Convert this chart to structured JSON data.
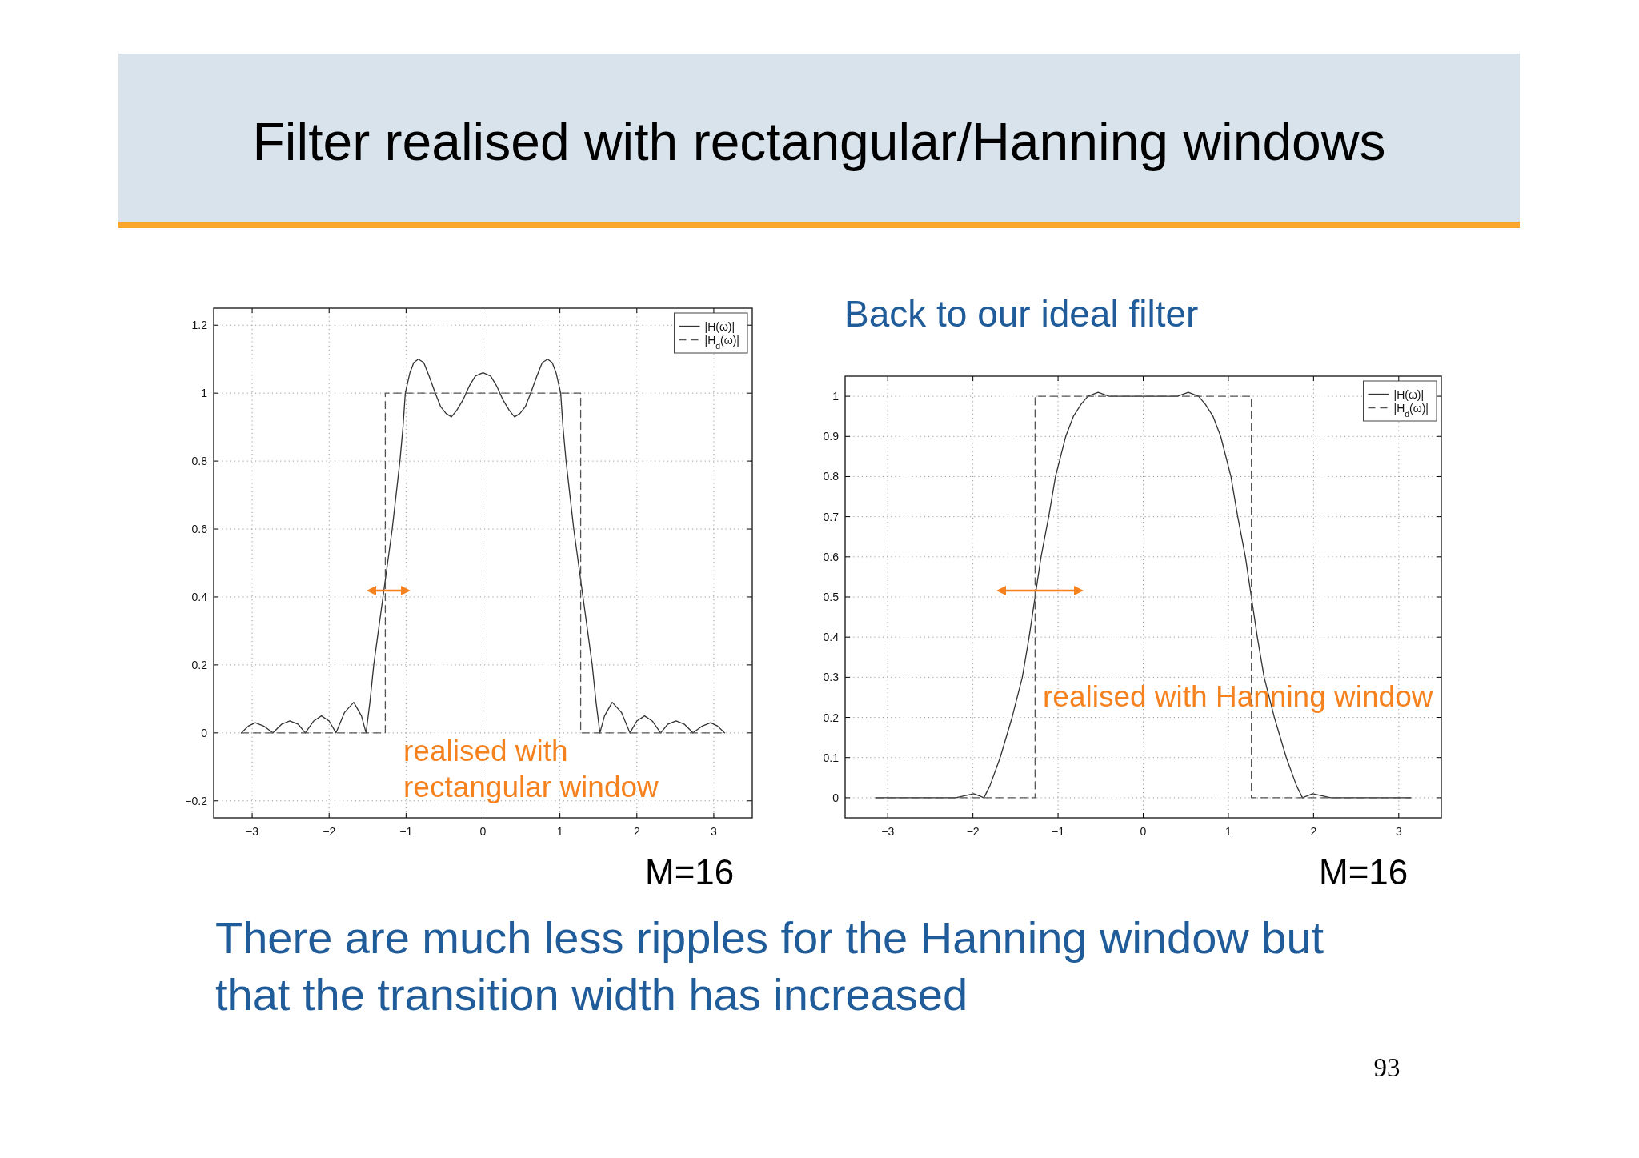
{
  "chart_data": [
    {
      "type": "other",
      "title": "Filter realised with rectangular/Hanning windows",
      "annotations": [
        "There are much less ripples for the Hanning window but that the transition width has increased",
        "93"
      ]
    },
    {
      "type": "line",
      "xlim": [
        -3.5,
        3.5
      ],
      "ylim": [
        -0.25,
        1.25
      ],
      "xticks": [
        -3,
        -2,
        -1,
        0,
        1,
        2,
        3
      ],
      "yticks": [
        -0.2,
        0,
        0.2,
        0.4,
        0.6,
        0.8,
        1,
        1.2
      ],
      "grid": true,
      "legend": "top right",
      "series": [
        {
          "name": "|H(ω)|",
          "color": "#333333",
          "line_style": "solid",
          "x": [
            -3.14,
            -3.05,
            -2.96,
            -2.85,
            -2.73,
            -2.62,
            -2.51,
            -2.4,
            -2.31,
            -2.2,
            -2.1,
            -2.0,
            -1.91,
            -1.8,
            -1.68,
            -1.58,
            -1.52,
            -1.47,
            -1.42,
            -1.36,
            -1.3,
            -1.24,
            -1.18,
            -1.13,
            -1.08,
            -1.04,
            -1.01,
            -0.95,
            -0.9,
            -0.84,
            -0.77,
            -0.7,
            -0.62,
            -0.55,
            -0.48,
            -0.41,
            -0.34,
            -0.26,
            -0.18,
            -0.1,
            0,
            0.1,
            0.18,
            0.26,
            0.34,
            0.41,
            0.48,
            0.55,
            0.62,
            0.7,
            0.77,
            0.84,
            0.9,
            0.95,
            1.01,
            1.04,
            1.08,
            1.13,
            1.18,
            1.24,
            1.3,
            1.36,
            1.42,
            1.47,
            1.52,
            1.58,
            1.68,
            1.8,
            1.91,
            2.0,
            2.1,
            2.2,
            2.31,
            2.4,
            2.51,
            2.62,
            2.73,
            2.85,
            2.96,
            3.05,
            3.14
          ],
          "values": [
            0,
            0.02,
            0.03,
            0.02,
            0,
            0.025,
            0.035,
            0.025,
            0,
            0.035,
            0.05,
            0.035,
            0,
            0.06,
            0.09,
            0.05,
            0,
            0.09,
            0.2,
            0.3,
            0.4,
            0.5,
            0.6,
            0.7,
            0.8,
            0.9,
            1.0,
            1.06,
            1.09,
            1.1,
            1.09,
            1.05,
            1.0,
            0.96,
            0.94,
            0.93,
            0.95,
            0.98,
            1.02,
            1.05,
            1.06,
            1.05,
            1.02,
            0.98,
            0.95,
            0.93,
            0.94,
            0.96,
            1.0,
            1.05,
            1.09,
            1.1,
            1.09,
            1.06,
            1.0,
            0.9,
            0.8,
            0.7,
            0.6,
            0.5,
            0.4,
            0.3,
            0.2,
            0.09,
            0,
            0.05,
            0.09,
            0.06,
            0,
            0.035,
            0.05,
            0.035,
            0,
            0.025,
            0.035,
            0.025,
            0,
            0.02,
            0.03,
            0.02,
            0
          ]
        },
        {
          "name": "|H$_{d}$(ω)|",
          "color": "#555555",
          "line_style": "dashed",
          "x": [
            -3.14,
            -1.27,
            -1.27,
            1.27,
            1.27,
            3.14
          ],
          "values": [
            0,
            0,
            1,
            1,
            0,
            0
          ]
        }
      ],
      "annotations": [
        "realised with rectangular window",
        "M=16"
      ]
    },
    {
      "type": "line",
      "title": "Back to our ideal filter",
      "xlim": [
        -3.5,
        3.5
      ],
      "ylim": [
        -0.05,
        1.05
      ],
      "xticks": [
        -3,
        -2,
        -1,
        0,
        1,
        2,
        3
      ],
      "yticks": [
        0,
        0.1,
        0.2,
        0.3,
        0.4,
        0.5,
        0.6,
        0.7,
        0.8,
        0.9,
        1
      ],
      "grid": true,
      "legend": "top right",
      "series": [
        {
          "name": "|H(ω)|",
          "color": "#333333",
          "line_style": "solid",
          "x": [
            -3.14,
            -2.8,
            -2.5,
            -2.2,
            -1.99,
            -1.87,
            -1.8,
            -1.68,
            -1.54,
            -1.42,
            -1.34,
            -1.27,
            -1.2,
            -1.11,
            -1.03,
            -0.91,
            -0.82,
            -0.73,
            -0.65,
            -0.53,
            -0.4,
            -0.2,
            0,
            0.2,
            0.4,
            0.53,
            0.65,
            0.73,
            0.82,
            0.91,
            1.03,
            1.11,
            1.2,
            1.27,
            1.34,
            1.42,
            1.54,
            1.68,
            1.8,
            1.87,
            1.99,
            2.2,
            2.5,
            2.8,
            3.14
          ],
          "values": [
            0,
            0,
            0,
            0,
            0.01,
            0,
            0.03,
            0.1,
            0.2,
            0.3,
            0.4,
            0.5,
            0.6,
            0.7,
            0.8,
            0.9,
            0.95,
            0.98,
            1.0,
            1.01,
            1.0,
            1.0,
            1.0,
            1.0,
            1.0,
            1.01,
            1.0,
            0.98,
            0.95,
            0.9,
            0.8,
            0.7,
            0.6,
            0.5,
            0.4,
            0.3,
            0.2,
            0.1,
            0.03,
            0,
            0.01,
            0,
            0,
            0,
            0
          ]
        },
        {
          "name": "|H$_{d}$(ω)|",
          "color": "#555555",
          "line_style": "dashed",
          "x": [
            -3.14,
            -1.27,
            -1.27,
            1.27,
            1.27,
            3.14
          ],
          "values": [
            0,
            0,
            1,
            1,
            0,
            0
          ]
        }
      ],
      "annotations": [
        "realised with Hanning window",
        "M=16"
      ]
    }
  ]
}
